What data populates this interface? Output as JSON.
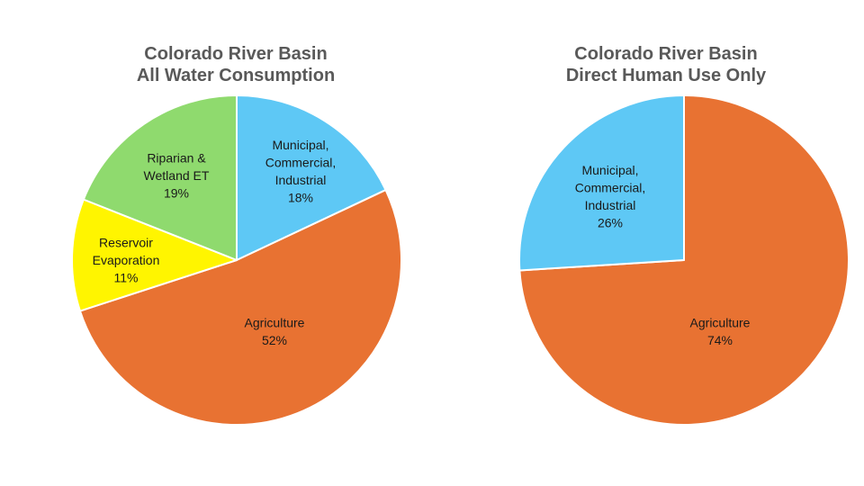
{
  "chart_data": [
    {
      "type": "pie",
      "title_lines": [
        "Colorado River Basin",
        "All Water Consumption"
      ],
      "slices": [
        {
          "label_lines": [
            "Municipal,",
            "Commercial,",
            "Industrial",
            "18%"
          ],
          "value": 18,
          "color": "#5EC8F5"
        },
        {
          "label_lines": [
            "Agriculture",
            "52%"
          ],
          "value": 52,
          "color": "#E87232"
        },
        {
          "label_lines": [
            "Reservoir",
            "Evaporation",
            "11%"
          ],
          "value": 11,
          "color": "#FFF500"
        },
        {
          "label_lines": [
            "Riparian &",
            "Wetland ET",
            "19%"
          ],
          "value": 19,
          "color": "#8FDA6E"
        }
      ]
    },
    {
      "type": "pie",
      "title_lines": [
        "Colorado River Basin",
        "Direct Human Use Only"
      ],
      "slices": [
        {
          "label_lines": [
            "Agriculture",
            "74%"
          ],
          "value": 74,
          "color": "#E87232"
        },
        {
          "label_lines": [
            "Municipal,",
            "Commercial,",
            "Industrial",
            "26%"
          ],
          "value": 26,
          "color": "#5EC8F5"
        }
      ]
    }
  ]
}
